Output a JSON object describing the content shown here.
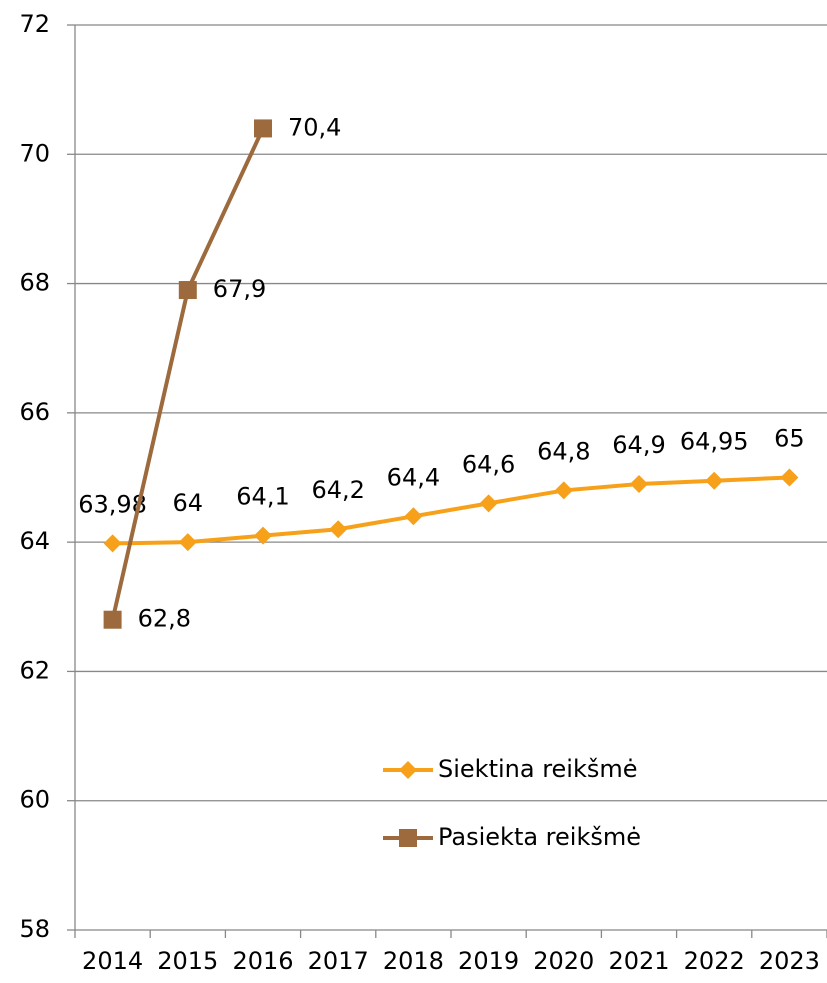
{
  "chart_data": {
    "type": "line",
    "categories": [
      "2014",
      "2015",
      "2016",
      "2017",
      "2018",
      "2019",
      "2020",
      "2021",
      "2022",
      "2023"
    ],
    "series": [
      {
        "name": "Siektina reikšmė",
        "color": "#f7a11a",
        "marker": "diamond",
        "values": [
          63.98,
          64,
          64.1,
          64.2,
          64.4,
          64.6,
          64.8,
          64.9,
          64.95,
          65
        ],
        "value_labels": [
          "63,98",
          "64",
          "64,1",
          "64,2",
          "64,4",
          "64,6",
          "64,8",
          "64,9",
          "64,95",
          "65"
        ]
      },
      {
        "name": "Pasiekta reikšmė",
        "color": "#9c6a3c",
        "marker": "square",
        "values": [
          62.8,
          67.9,
          70.4,
          null,
          null,
          null,
          null,
          null,
          null,
          null
        ],
        "value_labels": [
          "62,8",
          "67,9",
          "70,4",
          null,
          null,
          null,
          null,
          null,
          null,
          null
        ]
      }
    ],
    "ylim": [
      58,
      72
    ],
    "yticks": [
      58,
      60,
      62,
      64,
      66,
      68,
      70,
      72
    ],
    "grid": true
  }
}
